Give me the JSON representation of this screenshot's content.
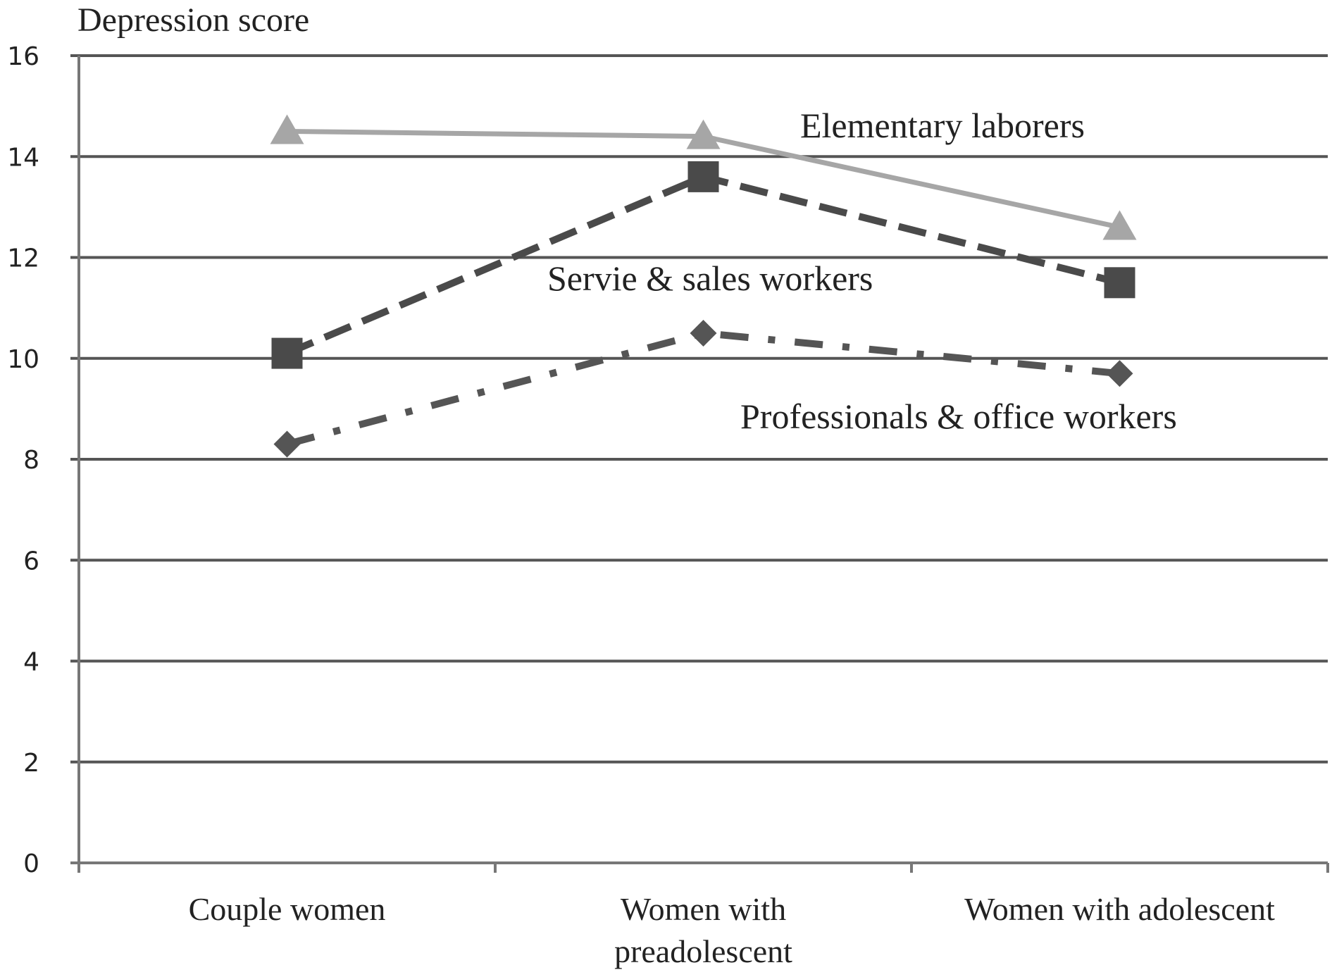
{
  "chart_data": {
    "type": "line",
    "title": "",
    "ylabel": "Depression score",
    "xlabel": "",
    "ylim": [
      0,
      16
    ],
    "yticks": [
      0,
      2,
      4,
      6,
      8,
      10,
      12,
      14,
      16
    ],
    "grid": true,
    "categories": [
      [
        "Couple women"
      ],
      [
        "Women with",
        "preadolescent"
      ],
      [
        "Women with adolescent"
      ]
    ],
    "series": [
      {
        "name": "Elementary laborers",
        "values": [
          14.5,
          14.4,
          12.6
        ],
        "marker": "triangle",
        "dash": "solid",
        "color": "#a6a6a6"
      },
      {
        "name": "Servie & sales workers",
        "values": [
          10.1,
          13.6,
          11.5
        ],
        "marker": "square",
        "dash": "dashed",
        "color": "#4a4a4a"
      },
      {
        "name": "Professionals & office workers",
        "values": [
          8.3,
          10.5,
          9.7
        ],
        "marker": "diamond",
        "dash": "dashdot",
        "color": "#555555"
      }
    ]
  }
}
